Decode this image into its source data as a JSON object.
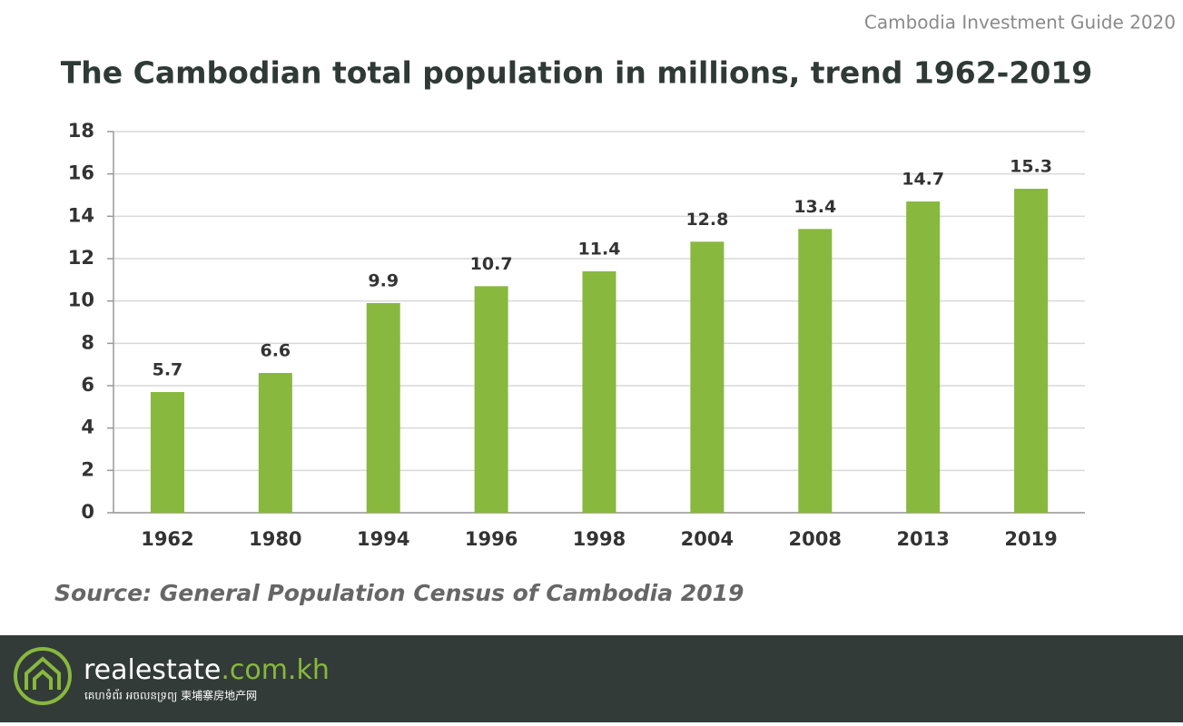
{
  "header": {
    "guide": "Cambodia Investment Guide 2020"
  },
  "chart_data": {
    "type": "bar",
    "title": "The Cambodian total population in millions, trend 1962-2019",
    "categories": [
      "1962",
      "1980",
      "1994",
      "1996",
      "1998",
      "2004",
      "2008",
      "2013",
      "2019"
    ],
    "values": [
      5.7,
      6.6,
      9.9,
      10.7,
      11.4,
      12.8,
      13.4,
      14.7,
      15.3
    ],
    "color": "#88b83e",
    "ylim": [
      0,
      18
    ],
    "yticks": [
      0,
      2,
      4,
      6,
      8,
      10,
      12,
      14,
      16,
      18
    ],
    "grid": true
  },
  "source": "Source: General Population Census of Cambodia 2019",
  "footer": {
    "brand": "realestate",
    "domain": ".com.kh",
    "tagline": "គេហទំព័រ អចលនទ្រព្យ  柬埔寨房地产网"
  }
}
